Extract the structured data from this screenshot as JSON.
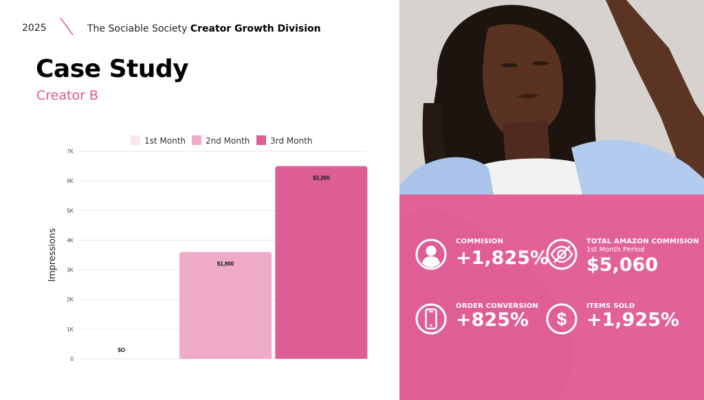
{
  "header": {
    "year": "2025",
    "brand_prefix": "The Sociable Society",
    "brand_bold": "Creator Growth Division"
  },
  "title": "Case Study",
  "subtitle": "Creator B",
  "colors": {
    "accent": "#e1568e",
    "month1": "#fbe6ee",
    "month2": "#eeaac7",
    "month3": "#dc5e94",
    "overlay": "#e8528c"
  },
  "chart_data": {
    "type": "bar",
    "categories": [
      "1st Month",
      "2nd Month",
      "3rd Month"
    ],
    "values": [
      0,
      3600,
      6500
    ],
    "data_labels": [
      "$O",
      "$1,800",
      "$3,260"
    ],
    "legend": [
      "1st Month",
      "2nd Month",
      "3rd Month"
    ],
    "legend_position": "top",
    "xlabel": "",
    "ylabel": "Impressions",
    "yticks": [
      "0",
      "1K",
      "2K",
      "3K",
      "4K",
      "5K",
      "6K",
      "7K"
    ],
    "ylim": [
      0,
      7000
    ],
    "grid": true
  },
  "stats": [
    {
      "icon": "user-icon",
      "label": "COMMISION",
      "sub": "",
      "value": "+1,825%"
    },
    {
      "icon": "eye-icon",
      "label": "TOTAL AMAZON COMMISION",
      "sub": "1st Month Period",
      "value": "$5,060"
    },
    {
      "icon": "phone-icon",
      "label": "ORDER CONVERSION",
      "sub": "",
      "value": "+825%"
    },
    {
      "icon": "dollar-icon",
      "label": "ITEMS SOLD",
      "sub": "",
      "value": "+1,925%"
    }
  ]
}
